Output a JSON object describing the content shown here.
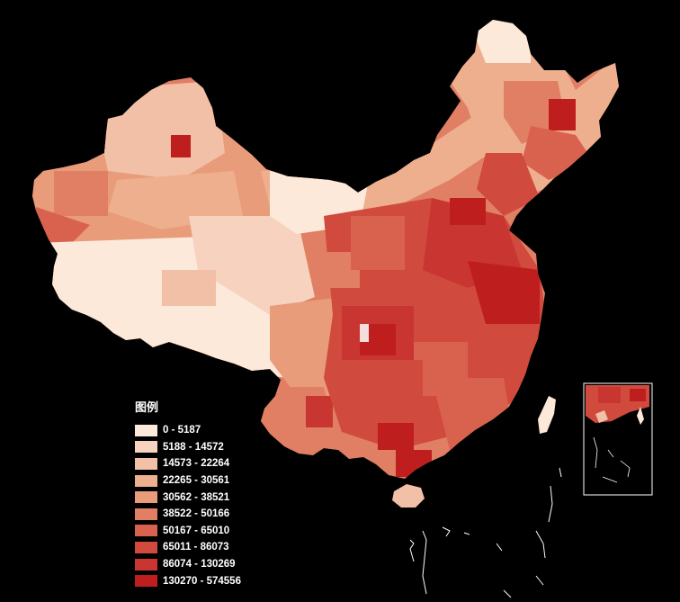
{
  "legend": {
    "title": "图例",
    "classes": [
      {
        "label": "0 - 5187",
        "color": "#fde9da"
      },
      {
        "label": "5188 - 14572",
        "color": "#f6d2bf"
      },
      {
        "label": "14573 - 22264",
        "color": "#f1c0a6"
      },
      {
        "label": "22265 - 30561",
        "color": "#eeaf8e"
      },
      {
        "label": "30562 - 38521",
        "color": "#e89c7a"
      },
      {
        "label": "38522 - 50166",
        "color": "#e07f63"
      },
      {
        "label": "50167 - 65010",
        "color": "#d9624f"
      },
      {
        "label": "65011 - 86073",
        "color": "#d04a3d"
      },
      {
        "label": "86074 - 130269",
        "color": "#c93631"
      },
      {
        "label": "130270 - 574556",
        "color": "#bf1e1e"
      }
    ]
  },
  "colors": {
    "background": "#000000",
    "inset_frame": "#ffffff",
    "sea_islands": "#ffffff"
  }
}
